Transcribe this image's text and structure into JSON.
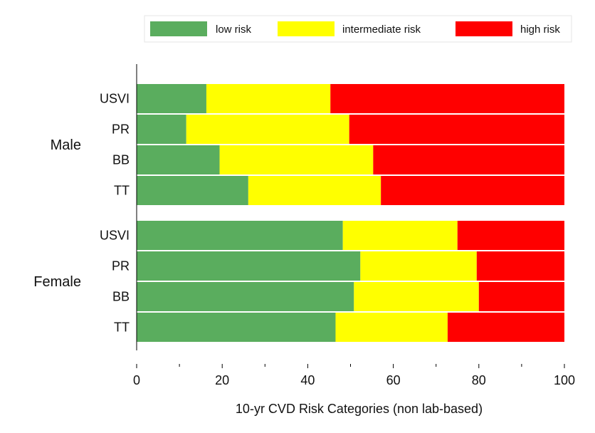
{
  "chart_data": {
    "type": "bar",
    "orientation": "horizontal",
    "stacked": true,
    "xlabel": "10-yr CVD Risk Categories (non lab-based)",
    "xlim": [
      0,
      100
    ],
    "xticks": [
      0,
      20,
      40,
      60,
      80,
      100
    ],
    "grid": false,
    "legend_position": "top",
    "groups": [
      {
        "name": "Male",
        "categories": [
          "USVI",
          "PR",
          "BB",
          "TT"
        ]
      },
      {
        "name": "Female",
        "categories": [
          "USVI",
          "PR",
          "BB",
          "TT"
        ]
      }
    ],
    "series": [
      {
        "name": "low risk",
        "color": "#5aad5e",
        "values": [
          16.3,
          11.6,
          19.4,
          26.1,
          48.2,
          52.3,
          50.8,
          46.5
        ]
      },
      {
        "name": "intermediate risk",
        "color": "#ffff00",
        "values": [
          29.0,
          38.1,
          35.9,
          31.0,
          26.8,
          27.2,
          29.2,
          26.2
        ]
      },
      {
        "name": "high risk",
        "color": "#ff0000",
        "values": [
          54.7,
          50.3,
          44.7,
          42.9,
          25.0,
          20.5,
          20.0,
          27.3
        ]
      }
    ]
  }
}
